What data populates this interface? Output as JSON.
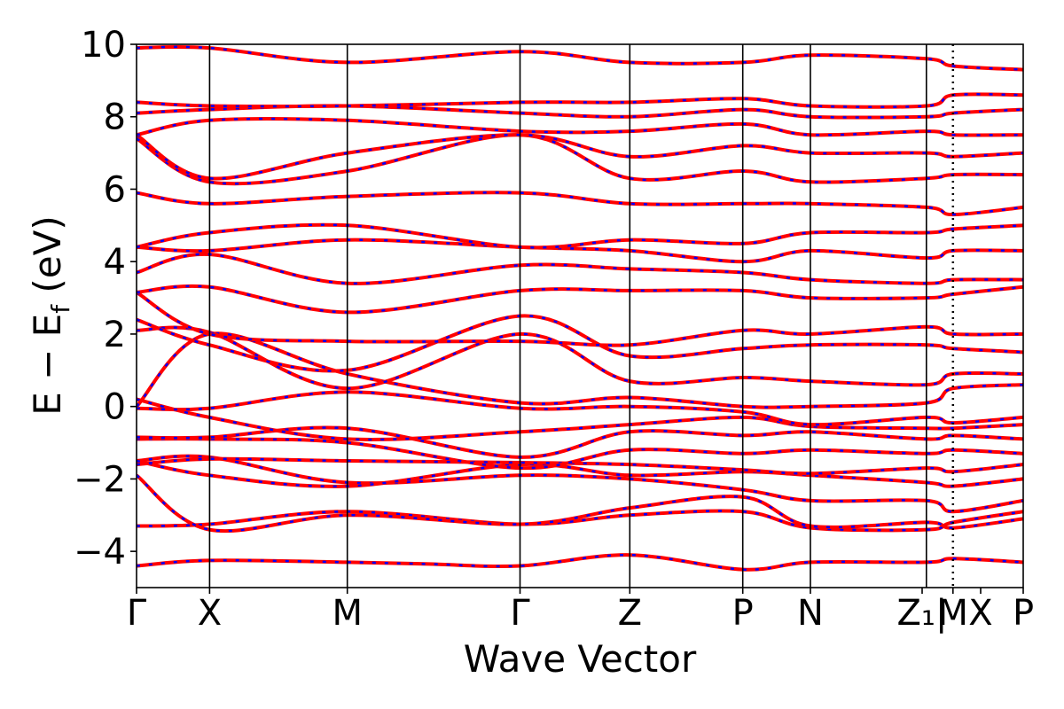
{
  "chart_data": {
    "type": "line",
    "title": "",
    "xlabel": "Wave Vector",
    "ylabel": "E − E_f (eV)",
    "ylabel_main": "E − E",
    "ylabel_sub": "f",
    "ylabel_unit": " (eV)",
    "ylim": [
      -5,
      10
    ],
    "yticks": [
      -4,
      -2,
      0,
      2,
      4,
      6,
      8,
      10
    ],
    "ytick_labels": [
      "−4",
      "−2",
      "0",
      "2",
      "4",
      "6",
      "8",
      "10"
    ],
    "k_path_labels": [
      "Γ",
      "X",
      "M",
      "Γ",
      "Z",
      "P",
      "N",
      "Z₁|",
      "M",
      "X",
      "P"
    ],
    "k_path_breakpoints": [
      0.0,
      0.0824,
      0.2377,
      0.4325,
      0.5563,
      0.6837,
      0.76,
      0.8908,
      0.9208,
      1.0
    ],
    "grid": false,
    "colors": {
      "band_red": "#ff0000",
      "band_blue": "#0000ff",
      "kpoint_line": "#000000"
    },
    "series": [
      {
        "style": "solid",
        "color": "#ff0000"
      },
      {
        "style": "dashed",
        "color": "#0000ff"
      }
    ],
    "bands": [
      {
        "x": [
          0,
          0.082,
          0.238,
          0.33,
          0.433,
          0.556,
          0.684,
          0.76,
          0.891,
          0.921,
          1.0
        ],
        "y": [
          -4.4,
          -4.25,
          -4.3,
          -4.35,
          -4.4,
          -4.1,
          -4.5,
          -4.3,
          -4.3,
          -4.2,
          -4.3
        ]
      },
      {
        "x": [
          0,
          0.082,
          0.238,
          0.433,
          0.556,
          0.684,
          0.76,
          0.891,
          0.921,
          1.0
        ],
        "y": [
          -3.3,
          -3.25,
          -2.9,
          -3.25,
          -3.0,
          -2.9,
          -3.35,
          -3.4,
          -3.2,
          -2.9
        ]
      },
      {
        "x": [
          0,
          0.082,
          0.238,
          0.433,
          0.556,
          0.684,
          0.76,
          0.891,
          0.921,
          1.0
        ],
        "y": [
          -1.9,
          -3.4,
          -3.0,
          -3.25,
          -2.8,
          -2.5,
          -3.3,
          -3.2,
          -3.35,
          -3.1
        ]
      },
      {
        "x": [
          0,
          0.082,
          0.238,
          0.433,
          0.556,
          0.684,
          0.76,
          0.891,
          0.921,
          1.0
        ],
        "y": [
          -1.5,
          -1.4,
          -2.1,
          -1.9,
          -2.0,
          -2.3,
          -2.6,
          -2.6,
          -2.9,
          -2.6
        ]
      },
      {
        "x": [
          0,
          0.082,
          0.238,
          0.433,
          0.556,
          0.684,
          0.76,
          0.891,
          0.921,
          1.0
        ],
        "y": [
          -1.5,
          -1.9,
          -2.2,
          -1.6,
          -1.9,
          -1.8,
          -1.9,
          -2.1,
          -2.2,
          -2.0
        ]
      },
      {
        "x": [
          0,
          0.082,
          0.238,
          0.433,
          0.556,
          0.684,
          0.76,
          0.891,
          0.921,
          1.0
        ],
        "y": [
          -1.6,
          -1.45,
          -1.5,
          -1.55,
          -1.6,
          -1.75,
          -1.85,
          -1.7,
          -1.8,
          -1.6
        ]
      },
      {
        "x": [
          0,
          0.082,
          0.238,
          0.433,
          0.556,
          0.684,
          0.76,
          0.891,
          0.921,
          1.0
        ],
        "y": [
          -0.9,
          -0.9,
          -1.0,
          -1.7,
          -1.2,
          -1.3,
          -1.2,
          -1.3,
          -1.2,
          -1.3
        ]
      },
      {
        "x": [
          0,
          0.082,
          0.238,
          0.433,
          0.556,
          0.684,
          0.76,
          0.891,
          0.921,
          1.0
        ],
        "y": [
          -0.85,
          -0.85,
          -0.6,
          -1.4,
          -0.7,
          -0.8,
          -0.7,
          -0.9,
          -0.8,
          -0.9
        ]
      },
      {
        "x": [
          0,
          0.082,
          0.238,
          0.433,
          0.556,
          0.684,
          0.76,
          0.891,
          0.921,
          1.0
        ],
        "y": [
          0.2,
          -0.3,
          -0.9,
          -0.7,
          -0.5,
          -0.3,
          -0.55,
          -0.6,
          -0.6,
          -0.5
        ]
      },
      {
        "x": [
          0,
          0.082,
          0.238,
          0.433,
          0.556,
          0.684,
          0.76,
          0.891,
          0.921,
          1.0
        ],
        "y": [
          -0.05,
          -0.05,
          0.4,
          -0.05,
          0.0,
          -0.15,
          -0.5,
          -0.3,
          -0.45,
          -0.3
        ]
      },
      {
        "x": [
          0,
          0.082,
          0.238,
          0.433,
          0.556,
          0.684,
          0.76,
          0.891,
          0.921,
          1.0
        ],
        "y": [
          0.0,
          2.0,
          0.9,
          0.1,
          0.25,
          0.0,
          0.0,
          0.1,
          0.5,
          0.6
        ]
      },
      {
        "x": [
          0,
          0.082,
          0.238,
          0.433,
          0.556,
          0.684,
          0.76,
          0.891,
          0.921,
          1.0
        ],
        "y": [
          2.1,
          2.05,
          0.5,
          2.0,
          0.7,
          0.8,
          0.7,
          0.6,
          0.9,
          0.9
        ]
      },
      {
        "x": [
          0,
          0.082,
          0.238,
          0.433,
          0.556,
          0.684,
          0.76,
          0.891,
          0.921,
          1.0
        ],
        "y": [
          2.4,
          1.7,
          1.0,
          2.5,
          1.4,
          1.6,
          1.7,
          1.7,
          1.6,
          1.5
        ]
      },
      {
        "x": [
          0,
          0.082,
          0.238,
          0.433,
          0.556,
          0.684,
          0.76,
          0.891,
          0.921,
          1.0
        ],
        "y": [
          3.15,
          2.0,
          1.8,
          1.8,
          1.7,
          2.1,
          2.0,
          2.2,
          2.0,
          2.0
        ]
      },
      {
        "x": [
          0,
          0.082,
          0.238,
          0.433,
          0.556,
          0.684,
          0.76,
          0.891,
          0.921,
          1.0
        ],
        "y": [
          3.15,
          3.3,
          2.6,
          3.2,
          3.2,
          3.2,
          3.0,
          3.0,
          3.1,
          3.3
        ]
      },
      {
        "x": [
          0,
          0.082,
          0.238,
          0.433,
          0.556,
          0.684,
          0.76,
          0.891,
          0.921,
          1.0
        ],
        "y": [
          3.7,
          4.2,
          3.4,
          3.9,
          3.8,
          3.7,
          3.5,
          3.4,
          3.5,
          3.5
        ]
      },
      {
        "x": [
          0,
          0.082,
          0.238,
          0.433,
          0.556,
          0.684,
          0.76,
          0.891,
          0.921,
          1.0
        ],
        "y": [
          4.4,
          4.3,
          4.6,
          4.4,
          4.3,
          4.0,
          4.3,
          4.1,
          4.3,
          4.3
        ]
      },
      {
        "x": [
          0,
          0.082,
          0.238,
          0.433,
          0.556,
          0.684,
          0.76,
          0.891,
          0.921,
          1.0
        ],
        "y": [
          4.4,
          4.8,
          5.0,
          4.4,
          4.6,
          4.5,
          4.8,
          4.8,
          4.9,
          5.0
        ]
      },
      {
        "x": [
          0,
          0.082,
          0.238,
          0.433,
          0.556,
          0.684,
          0.76,
          0.891,
          0.921,
          1.0
        ],
        "y": [
          5.9,
          5.6,
          5.8,
          5.9,
          5.6,
          5.6,
          5.6,
          5.5,
          5.3,
          5.5
        ]
      },
      {
        "x": [
          0,
          0.082,
          0.238,
          0.433,
          0.556,
          0.684,
          0.76,
          0.891,
          0.921,
          1.0
        ],
        "y": [
          7.4,
          6.2,
          6.5,
          7.5,
          6.3,
          6.5,
          6.2,
          6.3,
          6.4,
          6.4
        ]
      },
      {
        "x": [
          0,
          0.082,
          0.238,
          0.433,
          0.556,
          0.684,
          0.76,
          0.891,
          0.921,
          1.0
        ],
        "y": [
          7.5,
          6.3,
          7.0,
          7.5,
          6.9,
          7.2,
          7.0,
          7.0,
          6.9,
          7.0
        ]
      },
      {
        "x": [
          0,
          0.082,
          0.238,
          0.433,
          0.556,
          0.684,
          0.76,
          0.891,
          0.921,
          1.0
        ],
        "y": [
          7.5,
          7.9,
          7.9,
          7.6,
          7.6,
          7.8,
          7.5,
          7.6,
          7.5,
          7.5
        ]
      },
      {
        "x": [
          0,
          0.082,
          0.238,
          0.433,
          0.556,
          0.684,
          0.76,
          0.891,
          0.921,
          1.0
        ],
        "y": [
          8.1,
          8.2,
          8.3,
          8.1,
          8.0,
          8.2,
          8.0,
          8.0,
          8.1,
          8.2
        ]
      },
      {
        "x": [
          0,
          0.082,
          0.238,
          0.433,
          0.556,
          0.684,
          0.76,
          0.891,
          0.921,
          1.0
        ],
        "y": [
          8.4,
          8.3,
          8.3,
          8.4,
          8.4,
          8.5,
          8.3,
          8.3,
          8.6,
          8.6
        ]
      },
      {
        "x": [
          0,
          0.082,
          0.238,
          0.433,
          0.556,
          0.684,
          0.76,
          0.891,
          0.921,
          1.0
        ],
        "y": [
          9.9,
          9.9,
          9.5,
          9.8,
          9.5,
          9.5,
          9.7,
          9.6,
          9.4,
          9.3
        ]
      }
    ]
  }
}
